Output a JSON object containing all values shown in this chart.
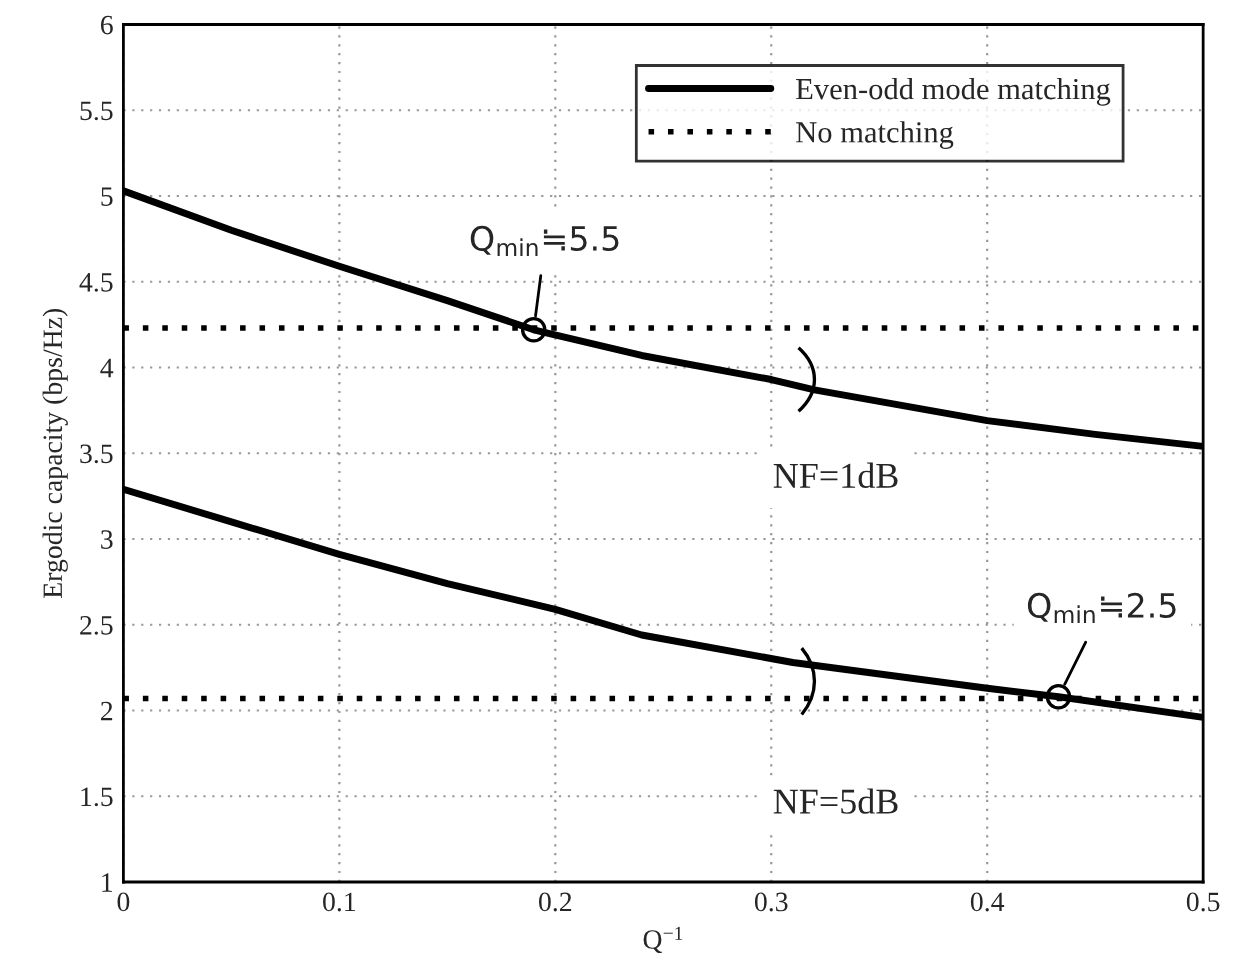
{
  "chart_data": {
    "type": "line",
    "xlabel": "Q$^{−1}$",
    "ylabel": "Ergodic capacity (bps/Hz)",
    "series": [
      {
        "name": "Even-odd mode matching",
        "color": "#000000",
        "line_style": "solid",
        "x": [
          0,
          0.05,
          0.1,
          0.15,
          0.19,
          0.24,
          0.3,
          0.32,
          0.4,
          0.45,
          0.5
        ],
        "values": [
          5.03,
          4.8,
          4.59,
          4.39,
          4.22,
          4.07,
          3.93,
          3.87,
          3.69,
          3.61,
          3.54
        ]
      },
      {
        "color": "#000000",
        "line_style": "solid",
        "x": [
          0,
          0.05,
          0.1,
          0.15,
          0.2,
          0.24,
          0.31,
          0.4,
          0.433,
          0.5
        ],
        "values": [
          3.29,
          3.1,
          2.91,
          2.74,
          2.59,
          2.44,
          2.28,
          2.13,
          2.08,
          1.96
        ]
      },
      {
        "name": "No matching",
        "color": "#000000",
        "line_style": "dotted",
        "x": [
          0,
          0.5
        ],
        "values": [
          4.23,
          4.23
        ]
      },
      {
        "color": "#000000",
        "line_style": "dotted",
        "x": [
          0,
          0.5
        ],
        "values": [
          2.07,
          2.07
        ]
      }
    ],
    "annotations": [
      {
        "text": "Q$_{min}$≒5.5",
        "x": 0.19,
        "y": 4.22
      },
      "NF=1dB",
      {
        "text": "Q$_{min}$≒2.5",
        "x": 0.433,
        "y": 2.08
      },
      "NF=5dB"
    ],
    "xlim": [
      0,
      0.5
    ],
    "xticks": [
      0,
      0.1,
      0.2,
      0.3,
      0.4,
      0.5
    ],
    "ylim": [
      1,
      6
    ],
    "yticks": [
      1,
      1.5,
      2,
      2.5,
      3,
      3.5,
      4,
      4.5,
      5,
      5.5,
      6
    ],
    "grid": true,
    "legend": "top right",
    "marker": "none"
  }
}
